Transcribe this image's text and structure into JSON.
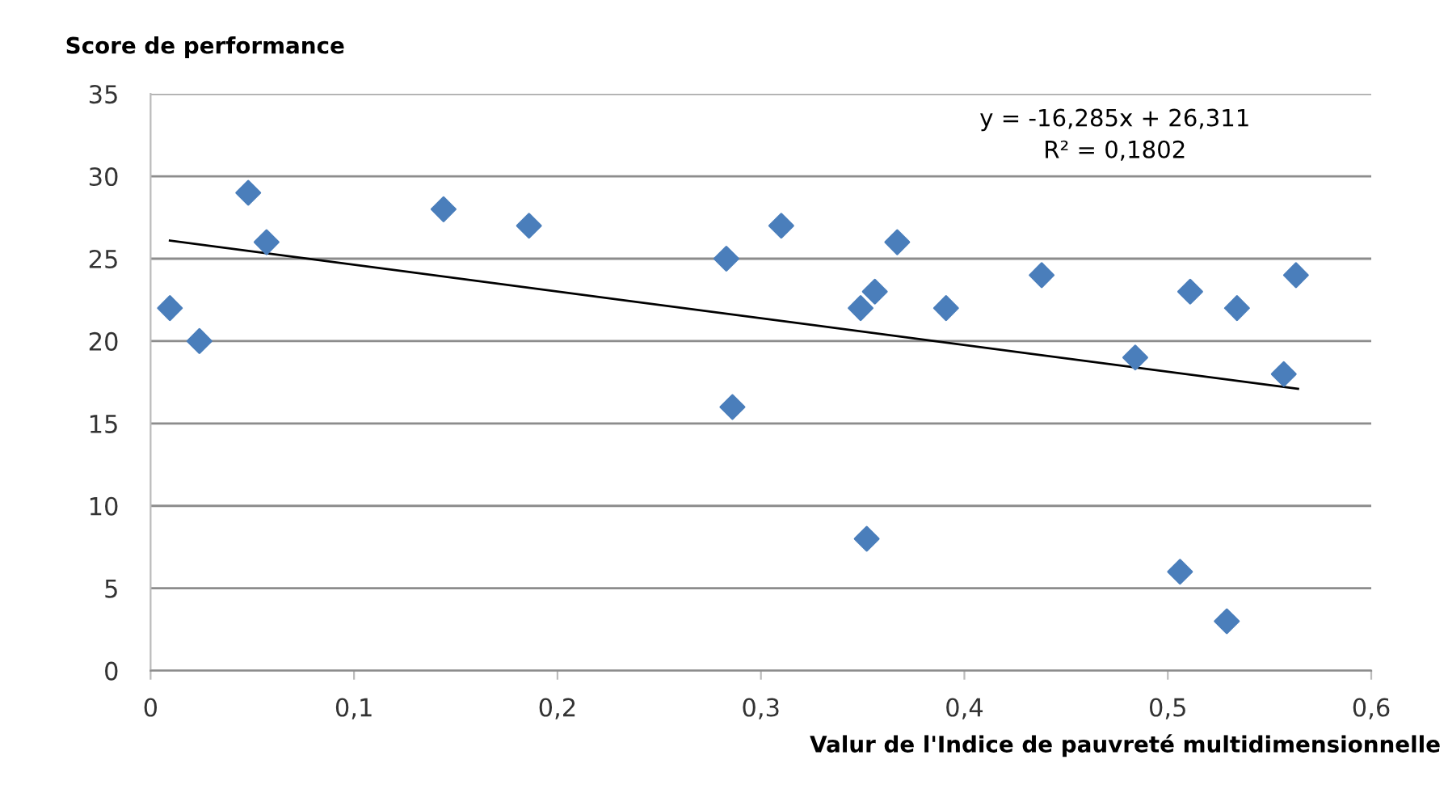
{
  "chart_data": {
    "type": "scatter",
    "xlabel": "Valur de l'Indice de pauvreté multidimensionnelle",
    "ylabel": "Score de performance",
    "annotations": [
      "y = -16,285x + 26,311",
      "R² = 0,1802"
    ],
    "series": [
      {
        "color": "#4a7ebb",
        "marker": "diamond",
        "x": [
          0.0095,
          0.024,
          0.048,
          0.057,
          0.144,
          0.186,
          0.283,
          0.286,
          0.31,
          0.349,
          0.352,
          0.356,
          0.367,
          0.391,
          0.438,
          0.484,
          0.506,
          0.511,
          0.529,
          0.534,
          0.557,
          0.563
        ],
        "values": [
          22,
          20,
          29,
          26,
          28,
          27,
          25,
          16,
          27,
          22,
          8,
          23,
          26,
          22,
          24,
          19,
          6,
          23,
          3,
          22,
          18,
          24
        ]
      },
      {
        "type": "line",
        "color": "#000000",
        "marker": "none",
        "line_style": "solid",
        "x": [
          0.0095,
          0.564
        ],
        "values": [
          26.1,
          17.1
        ]
      }
    ],
    "xlim": [
      0,
      0.6
    ],
    "xticks": [
      0,
      {
        "value": 0.1,
        "label": "0,1"
      },
      {
        "value": 0.2,
        "label": "0,2"
      },
      {
        "value": 0.3,
        "label": "0,3"
      },
      {
        "value": 0.4,
        "label": "0,4"
      },
      {
        "value": 0.5,
        "label": "0,5"
      },
      {
        "value": 0.6,
        "label": "0,6"
      }
    ],
    "ylim": [
      0,
      35
    ],
    "yticks": [
      0,
      5,
      10,
      15,
      20,
      25,
      30,
      35
    ],
    "grid": "y",
    "legend": false
  }
}
